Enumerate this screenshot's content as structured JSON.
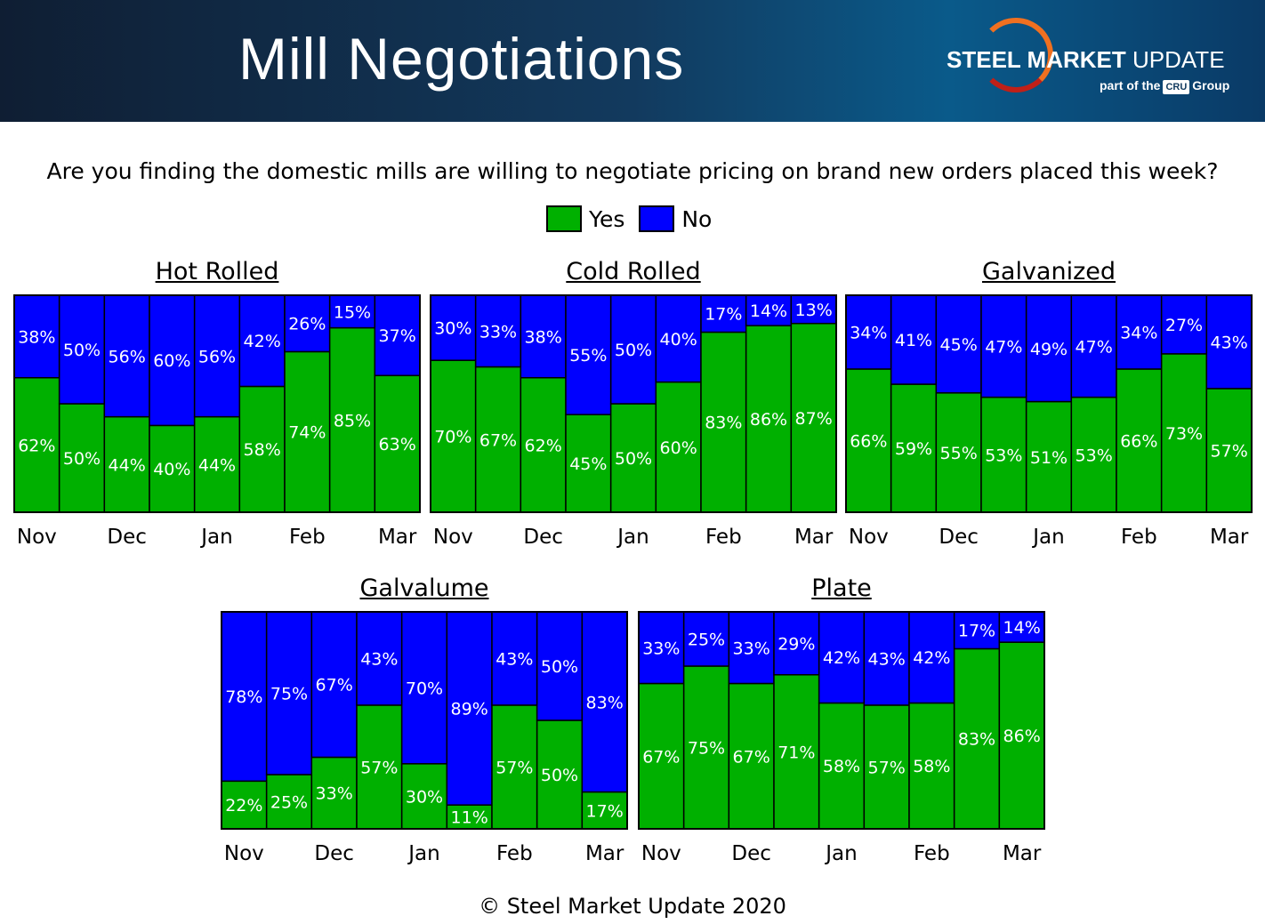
{
  "header": {
    "title": "Mill Negotiations",
    "logo_text_bold": "STEEL MARKET",
    "logo_text_light": "UPDATE",
    "logo_sub_pre": "part of the",
    "logo_sub_badge": "CRU",
    "logo_sub_post": "Group"
  },
  "question": "Are you finding the domestic mills are willing to negotiate pricing on brand new orders placed this week?",
  "legend": [
    {
      "label": "Yes",
      "color": "#00B000"
    },
    {
      "label": "No",
      "color": "#0000FF"
    }
  ],
  "footer": "© Steel Market Update 2020",
  "chart_data": [
    {
      "type": "bar",
      "stacked": true,
      "title": "Hot Rolled",
      "tick_labels": [
        "Nov",
        "Dec",
        "Jan",
        "Feb",
        "Mar"
      ],
      "series": [
        {
          "name": "Yes",
          "values": [
            62,
            50,
            44,
            40,
            44,
            58,
            74,
            85,
            63
          ]
        },
        {
          "name": "No",
          "values": [
            38,
            50,
            56,
            60,
            56,
            42,
            26,
            15,
            37
          ]
        }
      ],
      "ylim": [
        0,
        100
      ]
    },
    {
      "type": "bar",
      "stacked": true,
      "title": "Cold Rolled",
      "tick_labels": [
        "Nov",
        "Dec",
        "Jan",
        "Feb",
        "Mar"
      ],
      "series": [
        {
          "name": "Yes",
          "values": [
            70,
            67,
            62,
            45,
            50,
            60,
            83,
            86,
            87
          ]
        },
        {
          "name": "No",
          "values": [
            30,
            33,
            38,
            55,
            50,
            40,
            17,
            14,
            13
          ]
        }
      ],
      "ylim": [
        0,
        100
      ]
    },
    {
      "type": "bar",
      "stacked": true,
      "title": "Galvanized",
      "tick_labels": [
        "Nov",
        "Dec",
        "Jan",
        "Feb",
        "Mar"
      ],
      "series": [
        {
          "name": "Yes",
          "values": [
            66,
            59,
            55,
            53,
            51,
            53,
            66,
            73,
            57
          ]
        },
        {
          "name": "No",
          "values": [
            34,
            41,
            45,
            47,
            49,
            47,
            34,
            27,
            43
          ]
        }
      ],
      "ylim": [
        0,
        100
      ]
    },
    {
      "type": "bar",
      "stacked": true,
      "title": "Galvalume",
      "tick_labels": [
        "Nov",
        "Dec",
        "Jan",
        "Feb",
        "Mar"
      ],
      "series": [
        {
          "name": "Yes",
          "values": [
            22,
            25,
            33,
            57,
            30,
            11,
            57,
            50,
            17
          ]
        },
        {
          "name": "No",
          "values": [
            78,
            75,
            67,
            43,
            70,
            89,
            43,
            50,
            83
          ]
        }
      ],
      "ylim": [
        0,
        100
      ]
    },
    {
      "type": "bar",
      "stacked": true,
      "title": "Plate",
      "tick_labels": [
        "Nov",
        "Dec",
        "Jan",
        "Feb",
        "Mar"
      ],
      "series": [
        {
          "name": "Yes",
          "values": [
            67,
            75,
            67,
            71,
            58,
            57,
            58,
            83,
            86
          ]
        },
        {
          "name": "No",
          "values": [
            33,
            25,
            33,
            29,
            42,
            43,
            42,
            17,
            14
          ]
        }
      ],
      "ylim": [
        0,
        100
      ]
    }
  ]
}
